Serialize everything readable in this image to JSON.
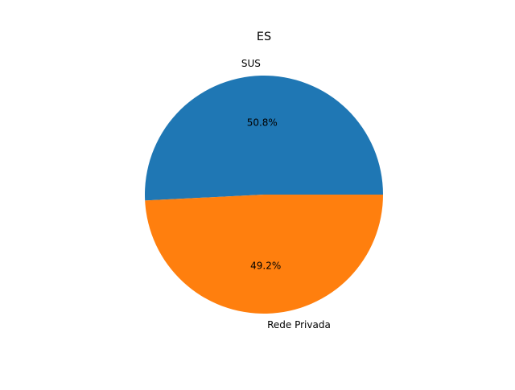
{
  "chart_data": {
    "type": "pie",
    "title": "ES",
    "slices": [
      {
        "label": "SUS",
        "value": 50.8,
        "pct_label": "50.8%",
        "color": "#1f77b4"
      },
      {
        "label": "Rede Privada",
        "value": 49.2,
        "pct_label": "49.2%",
        "color": "#ff7f0e"
      }
    ],
    "start_angle_deg": 0,
    "direction": "counterclockwise",
    "legend": "none"
  }
}
